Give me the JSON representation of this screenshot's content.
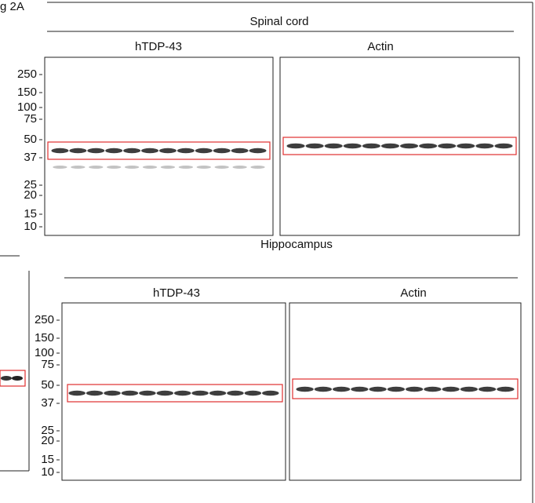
{
  "figure_label": "g 2A",
  "panels": [
    {
      "title": "Spinal cord",
      "blots": [
        {
          "label": "hTDP-43",
          "markers": [
            250,
            150,
            100,
            75,
            50,
            37,
            25,
            20,
            15,
            10
          ]
        },
        {
          "label": "Actin"
        }
      ]
    },
    {
      "title": "Hippocampus",
      "blots": [
        {
          "label": "hTDP-43",
          "markers": [
            250,
            150,
            100,
            75,
            50,
            37,
            25,
            20,
            15,
            10
          ]
        },
        {
          "label": "Actin"
        }
      ]
    }
  ]
}
